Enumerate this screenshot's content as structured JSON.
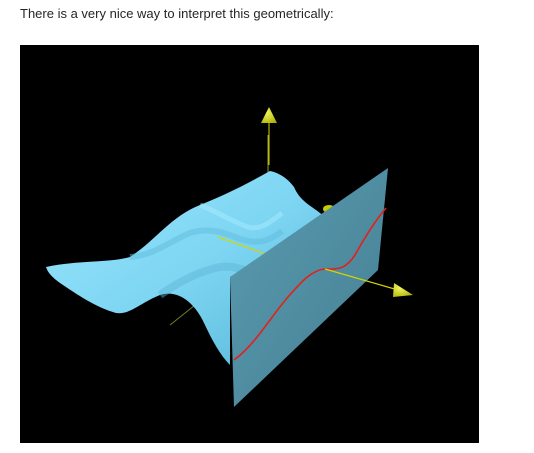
{
  "post": {
    "intro_text": "There is a very nice way to interpret this geometrically:"
  },
  "figure": {
    "background": "#000000",
    "surface_color": "#86dcf7",
    "surface_shadow": "#56b8d8",
    "plane_color": "#4f8ea3",
    "curve_color": "#e0221a",
    "axis_color": "#d6d400",
    "arrow_color": "#ccd300"
  }
}
